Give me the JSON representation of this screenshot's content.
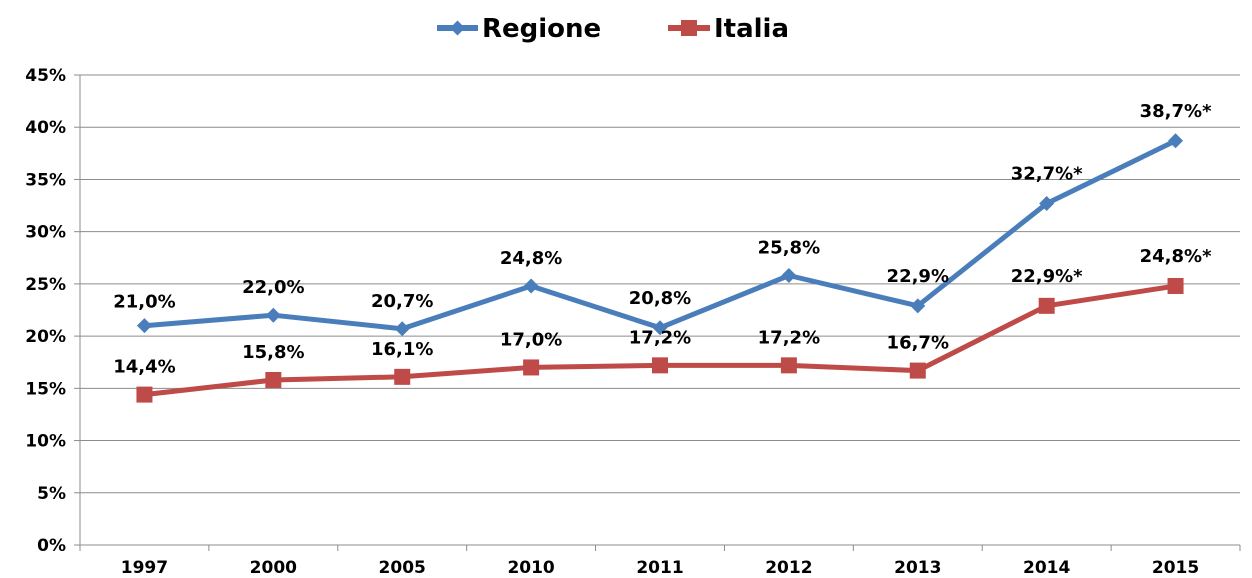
{
  "chart_data": {
    "type": "line",
    "title": "",
    "xlabel": "",
    "ylabel": "",
    "categories": [
      "1997",
      "2000",
      "2005",
      "2010",
      "2011",
      "2012",
      "2013",
      "2014",
      "2015"
    ],
    "ylim": [
      0,
      45
    ],
    "yticks": [
      0,
      5,
      10,
      15,
      20,
      25,
      30,
      35,
      40,
      45
    ],
    "ytick_labels": [
      "0%",
      "5%",
      "10%",
      "15%",
      "20%",
      "25%",
      "30%",
      "35%",
      "40%",
      "45%"
    ],
    "grid": true,
    "legend_position": "top-center",
    "series": [
      {
        "name": "Regione",
        "color": "#4a7ebb",
        "marker": "diamond",
        "values": [
          21.0,
          22.0,
          20.7,
          24.8,
          20.8,
          25.8,
          22.9,
          32.7,
          38.7
        ],
        "labels": [
          "21,0%",
          "22,0%",
          "20,7%",
          "24,8%",
          "20,8%",
          "25,8%",
          "22,9%",
          "32,7%*",
          "38,7%*"
        ]
      },
      {
        "name": "Italia",
        "color": "#be4b48",
        "marker": "square",
        "values": [
          14.4,
          15.8,
          16.1,
          17.0,
          17.2,
          17.2,
          16.7,
          22.9,
          24.8
        ],
        "labels": [
          "14,4%",
          "15,8%",
          "16,1%",
          "17,0%",
          "17,2%",
          "17,2%",
          "16,7%",
          "22,9%*",
          "24,8%*"
        ]
      }
    ]
  }
}
